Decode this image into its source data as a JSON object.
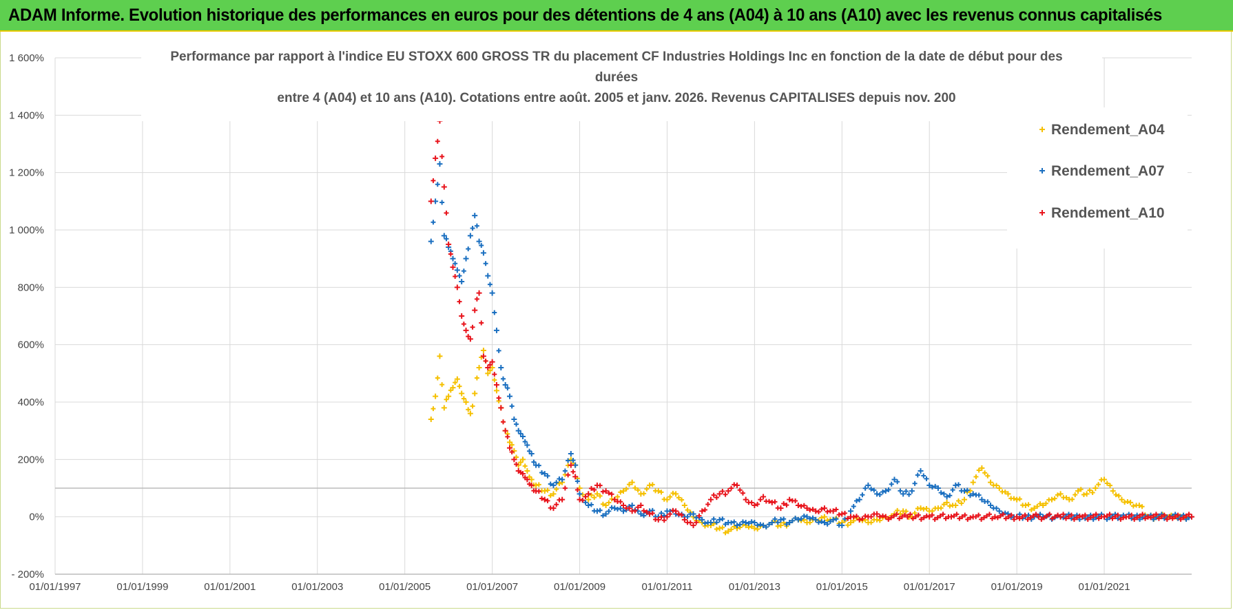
{
  "banner": {
    "title": "ADAM Informe. Evolution historique des performances en euros pour des détentions de 4 ans (A04) à 10 ans (A10) avec les revenus connus capitalisés"
  },
  "chart_data": {
    "type": "scatter",
    "title_lines": [
      "Performance par rapport à l'indice EU STOXX 600 GROSS TR  du placement CF Industries Holdings Inc en fonction de la date de début pour des",
      "durées",
      "entre 4 (A04) et 10 ans (A10).  Cotations entre août. 2005 et janv. 2026. Revenus CAPITALISES  depuis nov. 200"
    ],
    "xlabel": "",
    "ylabel": "",
    "xlim": [
      1997.0,
      2023.0
    ],
    "ylim": [
      -200,
      1600
    ],
    "x_ticks": [
      "01/01/1997",
      "01/01/1999",
      "01/01/2001",
      "01/01/2003",
      "01/01/2005",
      "01/01/2007",
      "01/01/2009",
      "01/01/2011",
      "01/01/2013",
      "01/01/2015",
      "01/01/2017",
      "01/01/2019",
      "01/01/2021"
    ],
    "x_tick_values": [
      1997,
      1999,
      2001,
      2003,
      2005,
      2007,
      2009,
      2011,
      2013,
      2015,
      2017,
      2019,
      2021
    ],
    "y_ticks": [
      "- 200%",
      "0%",
      "200%",
      "400%",
      "600%",
      "800%",
      "1 000%",
      "1 200%",
      "1 400%",
      "1 600%"
    ],
    "y_tick_values": [
      -200,
      0,
      200,
      400,
      600,
      800,
      1000,
      1200,
      1400,
      1600
    ],
    "legend_position": "top-right",
    "series": [
      {
        "name": "Rendement_A04",
        "color": "#f5c000",
        "points": [
          [
            2005.6,
            340
          ],
          [
            2005.7,
            420
          ],
          [
            2005.8,
            560
          ],
          [
            2005.9,
            380
          ],
          [
            2006.0,
            420
          ],
          [
            2006.1,
            450
          ],
          [
            2006.2,
            480
          ],
          [
            2006.3,
            430
          ],
          [
            2006.4,
            400
          ],
          [
            2006.5,
            360
          ],
          [
            2006.6,
            430
          ],
          [
            2006.7,
            520
          ],
          [
            2006.8,
            580
          ],
          [
            2006.9,
            500
          ],
          [
            2007.0,
            520
          ],
          [
            2007.1,
            440
          ],
          [
            2007.2,
            380
          ],
          [
            2007.3,
            300
          ],
          [
            2007.4,
            260
          ],
          [
            2007.5,
            230
          ],
          [
            2007.6,
            180
          ],
          [
            2007.7,
            200
          ],
          [
            2007.8,
            160
          ],
          [
            2007.9,
            130
          ],
          [
            2008.0,
            110
          ],
          [
            2008.2,
            90
          ],
          [
            2008.4,
            80
          ],
          [
            2008.6,
            120
          ],
          [
            2008.8,
            200
          ],
          [
            2008.9,
            180
          ],
          [
            2009.0,
            100
          ],
          [
            2009.2,
            60
          ],
          [
            2009.4,
            80
          ],
          [
            2009.6,
            40
          ],
          [
            2009.8,
            60
          ],
          [
            2010.0,
            90
          ],
          [
            2010.2,
            120
          ],
          [
            2010.4,
            80
          ],
          [
            2010.6,
            110
          ],
          [
            2010.8,
            90
          ],
          [
            2011.0,
            60
          ],
          [
            2011.2,
            80
          ],
          [
            2011.4,
            40
          ],
          [
            2011.6,
            0
          ],
          [
            2011.8,
            -20
          ],
          [
            2012.0,
            -30
          ],
          [
            2012.2,
            -40
          ],
          [
            2012.4,
            -50
          ],
          [
            2012.6,
            -40
          ],
          [
            2012.8,
            -30
          ],
          [
            2013.0,
            -40
          ],
          [
            2013.2,
            -30
          ],
          [
            2013.4,
            -20
          ],
          [
            2013.6,
            -30
          ],
          [
            2013.8,
            -20
          ],
          [
            2014.0,
            -10
          ],
          [
            2014.2,
            -20
          ],
          [
            2014.4,
            -10
          ],
          [
            2014.6,
            0
          ],
          [
            2014.8,
            -10
          ],
          [
            2015.0,
            -20
          ],
          [
            2015.2,
            -20
          ],
          [
            2015.4,
            -10
          ],
          [
            2015.6,
            -20
          ],
          [
            2015.8,
            -10
          ],
          [
            2016.0,
            0
          ],
          [
            2016.2,
            10
          ],
          [
            2016.4,
            20
          ],
          [
            2016.6,
            0
          ],
          [
            2016.8,
            30
          ],
          [
            2017.0,
            20
          ],
          [
            2017.2,
            30
          ],
          [
            2017.4,
            50
          ],
          [
            2017.6,
            40
          ],
          [
            2017.8,
            60
          ],
          [
            2018.0,
            120
          ],
          [
            2018.2,
            170
          ],
          [
            2018.4,
            120
          ],
          [
            2018.6,
            100
          ],
          [
            2018.8,
            80
          ],
          [
            2019.0,
            60
          ],
          [
            2019.2,
            40
          ],
          [
            2019.4,
            30
          ],
          [
            2019.6,
            40
          ],
          [
            2019.8,
            60
          ],
          [
            2020.0,
            80
          ],
          [
            2020.2,
            60
          ],
          [
            2020.4,
            90
          ],
          [
            2020.6,
            80
          ],
          [
            2020.8,
            100
          ],
          [
            2021.0,
            130
          ],
          [
            2021.2,
            90
          ],
          [
            2021.4,
            60
          ],
          [
            2021.6,
            50
          ],
          [
            2021.8,
            40
          ],
          [
            2022.0,
            0
          ],
          [
            2022.2,
            0
          ],
          [
            2022.4,
            0
          ],
          [
            2022.6,
            0
          ],
          [
            2022.8,
            0
          ],
          [
            2023.0,
            0
          ]
        ]
      },
      {
        "name": "Rendement_A07",
        "color": "#1a6fc0",
        "points": [
          [
            2005.6,
            960
          ],
          [
            2005.7,
            1100
          ],
          [
            2005.8,
            1230
          ],
          [
            2005.9,
            980
          ],
          [
            2006.0,
            940
          ],
          [
            2006.1,
            900
          ],
          [
            2006.2,
            860
          ],
          [
            2006.3,
            820
          ],
          [
            2006.4,
            900
          ],
          [
            2006.5,
            980
          ],
          [
            2006.6,
            1050
          ],
          [
            2006.7,
            960
          ],
          [
            2006.8,
            920
          ],
          [
            2006.9,
            840
          ],
          [
            2007.0,
            780
          ],
          [
            2007.1,
            650
          ],
          [
            2007.2,
            520
          ],
          [
            2007.3,
            460
          ],
          [
            2007.4,
            420
          ],
          [
            2007.5,
            340
          ],
          [
            2007.6,
            300
          ],
          [
            2007.7,
            280
          ],
          [
            2007.8,
            250
          ],
          [
            2007.9,
            220
          ],
          [
            2008.0,
            180
          ],
          [
            2008.2,
            150
          ],
          [
            2008.4,
            110
          ],
          [
            2008.6,
            130
          ],
          [
            2008.8,
            220
          ],
          [
            2008.9,
            180
          ],
          [
            2009.0,
            80
          ],
          [
            2009.2,
            40
          ],
          [
            2009.4,
            20
          ],
          [
            2009.6,
            10
          ],
          [
            2009.8,
            30
          ],
          [
            2010.0,
            20
          ],
          [
            2010.2,
            40
          ],
          [
            2010.4,
            10
          ],
          [
            2010.6,
            20
          ],
          [
            2010.8,
            0
          ],
          [
            2011.0,
            20
          ],
          [
            2011.2,
            10
          ],
          [
            2011.4,
            0
          ],
          [
            2011.6,
            10
          ],
          [
            2011.8,
            -10
          ],
          [
            2012.0,
            -20
          ],
          [
            2012.2,
            -10
          ],
          [
            2012.4,
            -20
          ],
          [
            2012.6,
            -30
          ],
          [
            2012.8,
            -20
          ],
          [
            2013.0,
            -20
          ],
          [
            2013.2,
            -30
          ],
          [
            2013.4,
            -20
          ],
          [
            2013.6,
            -10
          ],
          [
            2013.8,
            -20
          ],
          [
            2014.0,
            -10
          ],
          [
            2014.2,
            0
          ],
          [
            2014.4,
            -10
          ],
          [
            2014.6,
            -20
          ],
          [
            2014.8,
            -10
          ],
          [
            2015.0,
            -30
          ],
          [
            2015.2,
            20
          ],
          [
            2015.4,
            60
          ],
          [
            2015.6,
            110
          ],
          [
            2015.8,
            80
          ],
          [
            2016.0,
            90
          ],
          [
            2016.2,
            130
          ],
          [
            2016.4,
            80
          ],
          [
            2016.6,
            90
          ],
          [
            2016.8,
            160
          ],
          [
            2017.0,
            110
          ],
          [
            2017.2,
            100
          ],
          [
            2017.4,
            70
          ],
          [
            2017.6,
            110
          ],
          [
            2017.8,
            90
          ],
          [
            2018.0,
            80
          ],
          [
            2018.2,
            60
          ],
          [
            2018.4,
            40
          ],
          [
            2018.6,
            20
          ],
          [
            2018.8,
            10
          ],
          [
            2019.0,
            0
          ],
          [
            2019.2,
            0
          ],
          [
            2019.4,
            0
          ],
          [
            2019.6,
            0
          ],
          [
            2020.0,
            0
          ],
          [
            2020.5,
            0
          ],
          [
            2021.0,
            0
          ],
          [
            2021.5,
            0
          ],
          [
            2022.0,
            0
          ],
          [
            2022.5,
            0
          ],
          [
            2023.0,
            0
          ]
        ]
      },
      {
        "name": "Rendement_A10",
        "color": "#e8141c",
        "points": [
          [
            2005.6,
            1100
          ],
          [
            2005.7,
            1250
          ],
          [
            2005.8,
            1380
          ],
          [
            2005.9,
            1150
          ],
          [
            2006.0,
            950
          ],
          [
            2006.1,
            870
          ],
          [
            2006.2,
            800
          ],
          [
            2006.3,
            700
          ],
          [
            2006.4,
            650
          ],
          [
            2006.5,
            620
          ],
          [
            2006.6,
            720
          ],
          [
            2006.7,
            780
          ],
          [
            2006.8,
            560
          ],
          [
            2006.9,
            520
          ],
          [
            2007.0,
            540
          ],
          [
            2007.1,
            460
          ],
          [
            2007.2,
            380
          ],
          [
            2007.3,
            300
          ],
          [
            2007.4,
            240
          ],
          [
            2007.5,
            200
          ],
          [
            2007.6,
            160
          ],
          [
            2007.7,
            150
          ],
          [
            2007.8,
            130
          ],
          [
            2007.9,
            110
          ],
          [
            2008.0,
            90
          ],
          [
            2008.2,
            60
          ],
          [
            2008.4,
            30
          ],
          [
            2008.6,
            60
          ],
          [
            2008.8,
            180
          ],
          [
            2008.9,
            140
          ],
          [
            2009.0,
            60
          ],
          [
            2009.2,
            80
          ],
          [
            2009.4,
            110
          ],
          [
            2009.6,
            90
          ],
          [
            2009.8,
            60
          ],
          [
            2010.0,
            40
          ],
          [
            2010.2,
            20
          ],
          [
            2010.4,
            40
          ],
          [
            2010.6,
            10
          ],
          [
            2010.8,
            -10
          ],
          [
            2011.0,
            0
          ],
          [
            2011.2,
            20
          ],
          [
            2011.4,
            -10
          ],
          [
            2011.6,
            -30
          ],
          [
            2011.8,
            20
          ],
          [
            2012.0,
            60
          ],
          [
            2012.2,
            80
          ],
          [
            2012.4,
            90
          ],
          [
            2012.6,
            110
          ],
          [
            2012.8,
            60
          ],
          [
            2013.0,
            40
          ],
          [
            2013.2,
            70
          ],
          [
            2013.4,
            50
          ],
          [
            2013.6,
            30
          ],
          [
            2013.8,
            60
          ],
          [
            2014.0,
            40
          ],
          [
            2014.2,
            30
          ],
          [
            2014.4,
            20
          ],
          [
            2014.6,
            30
          ],
          [
            2014.8,
            20
          ],
          [
            2015.0,
            10
          ],
          [
            2015.2,
            0
          ],
          [
            2015.4,
            -10
          ],
          [
            2015.6,
            0
          ],
          [
            2015.8,
            10
          ],
          [
            2016.0,
            0
          ],
          [
            2016.5,
            0
          ],
          [
            2017.0,
            0
          ],
          [
            2017.5,
            0
          ],
          [
            2018.0,
            0
          ],
          [
            2018.5,
            0
          ],
          [
            2019.0,
            0
          ],
          [
            2019.5,
            0
          ],
          [
            2020.0,
            0
          ],
          [
            2020.5,
            0
          ],
          [
            2021.0,
            0
          ],
          [
            2021.5,
            0
          ],
          [
            2022.0,
            0
          ],
          [
            2022.5,
            0
          ],
          [
            2023.0,
            0
          ]
        ]
      }
    ]
  }
}
